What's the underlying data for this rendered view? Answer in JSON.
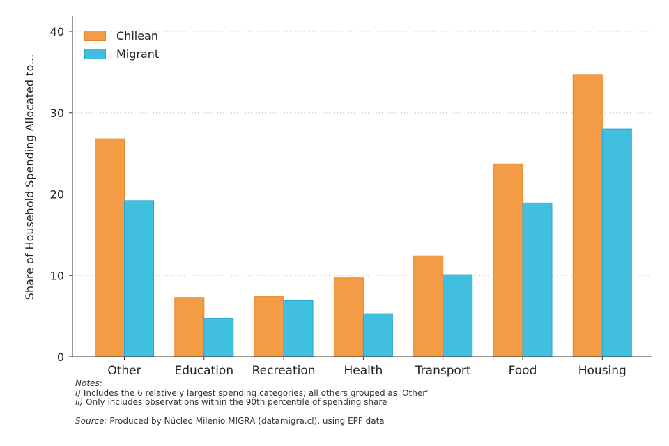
{
  "chart_data": {
    "type": "bar",
    "categories": [
      "Other",
      "Education",
      "Recreation",
      "Health",
      "Transport",
      "Food",
      "Housing"
    ],
    "series": [
      {
        "name": "Chilean",
        "values": [
          26.8,
          7.3,
          7.4,
          9.7,
          12.4,
          23.7,
          34.7
        ],
        "color": "#F39C45",
        "stroke": "#E8862A"
      },
      {
        "name": "Migrant",
        "values": [
          19.2,
          4.7,
          6.9,
          5.3,
          10.1,
          18.9,
          28.0
        ],
        "color": "#40BFDF",
        "stroke": "#2AA9CC"
      }
    ],
    "ylabel": "Share of Household Spending Allocated to...",
    "xlabel": "",
    "ylim": [
      0,
      40
    ],
    "yticks": [
      0,
      10,
      20,
      30,
      40
    ],
    "grid": "horizontal dotted",
    "legend": "top-left"
  },
  "notes": {
    "heading": "Notes:",
    "items": [
      {
        "marker": "i)",
        "text": " Includes the 6 relatively largest spending categories; all others grouped as 'Other'"
      },
      {
        "marker": "ii)",
        "text": " Only includes observations within the 90th percentile of spending share"
      }
    ],
    "source_label": "Source:",
    "source_text": " Produced by Núcleo Milenio MIGRA (datamigra.cl), using EPF data"
  }
}
